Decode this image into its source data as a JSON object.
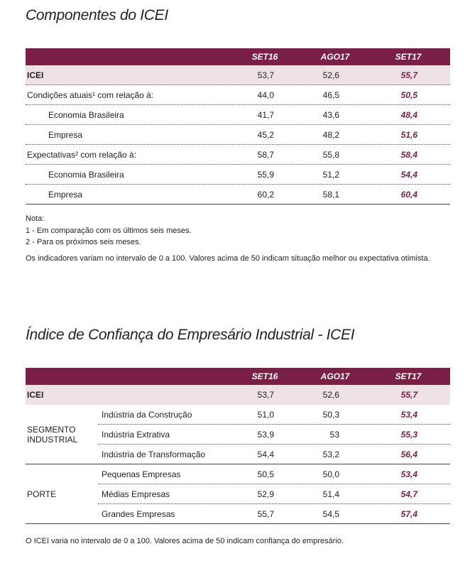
{
  "table1": {
    "title": "Componentes do ICEI",
    "columns": [
      "SET16",
      "AGO17",
      "SET17"
    ],
    "rows": [
      {
        "label": "ICEI",
        "values": [
          "53,7",
          "52,6",
          "55,7"
        ]
      },
      {
        "label": "Condições atuais¹ com relação à:",
        "values": [
          "44,0",
          "46,5",
          "50,5"
        ]
      },
      {
        "label": "Economia Brasileira",
        "values": [
          "41,7",
          "43,6",
          "48,4"
        ]
      },
      {
        "label": "Empresa",
        "values": [
          "45,2",
          "48,2",
          "51,6"
        ]
      },
      {
        "label": "Expectativas² com relação à:",
        "values": [
          "58,7",
          "55,8",
          "58,4"
        ]
      },
      {
        "label": "Economia Brasileira",
        "values": [
          "55,9",
          "51,2",
          "54,4"
        ]
      },
      {
        "label": "Empresa",
        "values": [
          "60,2",
          "58,1",
          "60,4"
        ]
      }
    ],
    "notes": [
      "Nota:",
      "1 - Em comparação com os últimos seis meses.",
      "2 - Para os próximos seis meses.",
      "Os indicadores variam no intervalo de 0 a 100. Valores acima de 50 indicam situação melhor ou expectativa otimista."
    ]
  },
  "table2": {
    "title": "Índice de Confiança do Empresário Industrial - ICEI",
    "columns": [
      "SET16",
      "AGO17",
      "SET17"
    ],
    "total": {
      "label": "ICEI",
      "values": [
        "53,7",
        "52,6",
        "55,7"
      ]
    },
    "groups": [
      {
        "label": "SEGMENTO INDUSTRIAL",
        "rows": [
          {
            "label": "Indústria da Construção",
            "values": [
              "51,0",
              "50,3",
              "53,4"
            ]
          },
          {
            "label": "Indústria Extrativa",
            "values": [
              "53,9",
              "53",
              "55,3"
            ]
          },
          {
            "label": "Indústria de Transformação",
            "values": [
              "54,4",
              "53,2",
              "56,4"
            ]
          }
        ]
      },
      {
        "label": "PORTE",
        "rows": [
          {
            "label": "Pequenas Empresas",
            "values": [
              "50,5",
              "50,0",
              "53,4"
            ]
          },
          {
            "label": "Médias Empresas",
            "values": [
              "52,9",
              "51,4",
              "54,7"
            ]
          },
          {
            "label": "Grandes Empresas",
            "values": [
              "55,7",
              "54,5",
              "57,4"
            ]
          }
        ]
      }
    ],
    "note": "O ICEI varia no intervalo de 0 a 100. Valores acima de 50 indicam confiança do empresário."
  }
}
